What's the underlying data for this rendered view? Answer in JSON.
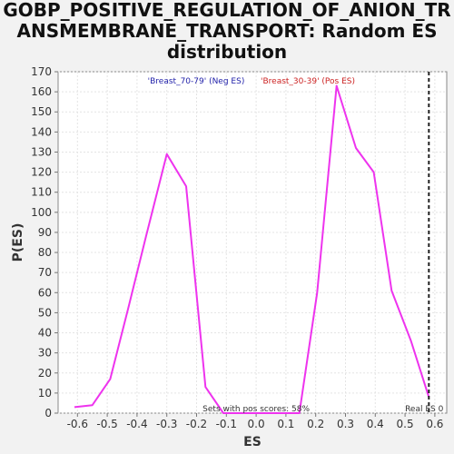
{
  "title_lines": [
    "GOBP_POSITIVE_REGULATION_OF_ANION_TR",
    "ANSMEMBRANE_TRANSPORT: Random ES",
    "distribution"
  ],
  "chart_data": {
    "type": "line",
    "title": "GOBP_POSITIVE_REGULATION_OF_ANION_TRANSMEMBRANE_TRANSPORT: Random ES distribution",
    "xlabel": "ES",
    "ylabel": "P(ES)",
    "xlim": [
      -0.665,
      0.64
    ],
    "ylim": [
      0,
      170
    ],
    "x_ticks": [
      -0.6,
      -0.5,
      -0.4,
      -0.3,
      -0.2,
      -0.1,
      0.0,
      0.1,
      0.2,
      0.3,
      0.4,
      0.5,
      0.6
    ],
    "x_tick_labels": [
      "-0.6",
      "-0.5",
      "-0.4",
      "-0.3",
      "-0.2",
      "-0.1",
      "0.0",
      "0.1",
      "0.2",
      "0.3",
      "0.4",
      "0.5",
      "0.6"
    ],
    "y_ticks": [
      0,
      10,
      20,
      30,
      40,
      50,
      60,
      70,
      80,
      90,
      100,
      110,
      120,
      130,
      140,
      150,
      160,
      170
    ],
    "grid": true,
    "series": [
      {
        "name": "",
        "color": "#ee33ee",
        "x": [
          -0.61,
          -0.55,
          -0.49,
          -0.43,
          -0.37,
          -0.3,
          -0.235,
          -0.17,
          -0.11,
          -0.05,
          0.01,
          0.08,
          0.145,
          0.205,
          0.27,
          0.335,
          0.395,
          0.455,
          0.52,
          0.58
        ],
        "y": [
          3,
          4,
          17,
          52,
          88,
          129,
          113,
          13,
          0,
          0,
          0,
          0,
          0,
          60,
          163,
          132,
          120,
          61,
          36,
          8
        ]
      }
    ],
    "legend": [
      {
        "text": "'Breast_70-79' (Neg ES)",
        "color": "#2222aa"
      },
      {
        "text": "'Breast_30-39' (Pos ES)",
        "color": "#cc2222"
      }
    ],
    "real_es": {
      "x": 0.58,
      "label": "Real ES 0"
    },
    "annotation": "Sets with pos scores: 58%"
  }
}
